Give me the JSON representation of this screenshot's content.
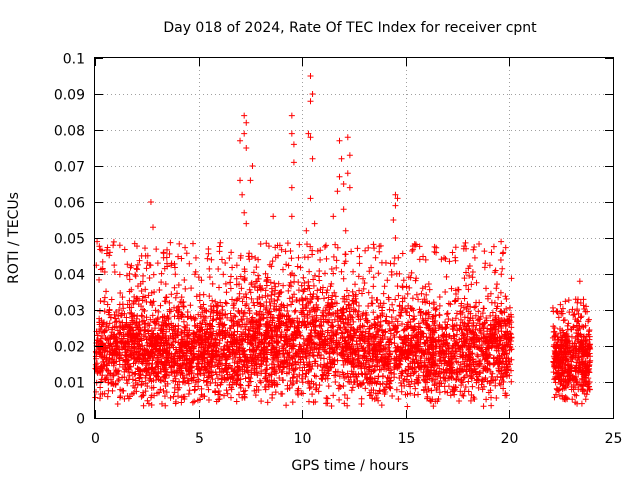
{
  "chart_data": {
    "type": "scatter",
    "title": "Day 018 of 2024, Rate Of TEC Index for receiver cpnt",
    "xlabel": "GPS time / hours",
    "ylabel": "ROTI / TECUs",
    "xlim": [
      0,
      25
    ],
    "ylim": [
      0,
      0.1
    ],
    "xticks": [
      0,
      5,
      10,
      15,
      20,
      25
    ],
    "xtick_labels": [
      "0",
      "5",
      "10",
      "15",
      "20",
      "25"
    ],
    "yticks": [
      0,
      0.01,
      0.02,
      0.03,
      0.04,
      0.05,
      0.06,
      0.07,
      0.08,
      0.09,
      0.1
    ],
    "ytick_labels": [
      "0",
      "0.01",
      "0.02",
      "0.03",
      "0.04",
      "0.05",
      "0.06",
      "0.07",
      "0.08",
      "0.09",
      "0.1"
    ],
    "grid": true,
    "marker": "+",
    "color": "#ff0000",
    "gap_hours": [
      20.1,
      22.1
    ],
    "series": [
      {
        "name": "ROTI",
        "outliers": [
          {
            "x": 10.4,
            "y": 0.095
          },
          {
            "x": 10.5,
            "y": 0.09
          },
          {
            "x": 10.4,
            "y": 0.088
          },
          {
            "x": 9.5,
            "y": 0.084
          },
          {
            "x": 7.2,
            "y": 0.084
          },
          {
            "x": 7.3,
            "y": 0.082
          },
          {
            "x": 7.2,
            "y": 0.079
          },
          {
            "x": 10.3,
            "y": 0.079
          },
          {
            "x": 9.5,
            "y": 0.079
          },
          {
            "x": 10.4,
            "y": 0.078
          },
          {
            "x": 12.2,
            "y": 0.078
          },
          {
            "x": 7.0,
            "y": 0.077
          },
          {
            "x": 11.8,
            "y": 0.077
          },
          {
            "x": 9.6,
            "y": 0.076
          },
          {
            "x": 7.3,
            "y": 0.075
          },
          {
            "x": 12.3,
            "y": 0.073
          },
          {
            "x": 10.5,
            "y": 0.072
          },
          {
            "x": 11.9,
            "y": 0.072
          },
          {
            "x": 9.6,
            "y": 0.071
          },
          {
            "x": 7.6,
            "y": 0.07
          },
          {
            "x": 12.2,
            "y": 0.068
          },
          {
            "x": 11.8,
            "y": 0.067
          },
          {
            "x": 7.0,
            "y": 0.066
          },
          {
            "x": 7.5,
            "y": 0.066
          },
          {
            "x": 12.0,
            "y": 0.065
          },
          {
            "x": 9.5,
            "y": 0.064
          },
          {
            "x": 12.3,
            "y": 0.064
          },
          {
            "x": 11.7,
            "y": 0.063
          },
          {
            "x": 7.1,
            "y": 0.062
          },
          {
            "x": 14.5,
            "y": 0.062
          },
          {
            "x": 14.6,
            "y": 0.061
          },
          {
            "x": 10.4,
            "y": 0.061
          },
          {
            "x": 2.7,
            "y": 0.06
          },
          {
            "x": 14.5,
            "y": 0.059
          },
          {
            "x": 12.0,
            "y": 0.058
          },
          {
            "x": 7.2,
            "y": 0.057
          },
          {
            "x": 8.6,
            "y": 0.056
          },
          {
            "x": 11.5,
            "y": 0.056
          },
          {
            "x": 9.5,
            "y": 0.056
          },
          {
            "x": 14.4,
            "y": 0.055
          },
          {
            "x": 7.3,
            "y": 0.054
          },
          {
            "x": 10.6,
            "y": 0.054
          },
          {
            "x": 2.8,
            "y": 0.053
          },
          {
            "x": 10.2,
            "y": 0.052
          },
          {
            "x": 12.1,
            "y": 0.052
          },
          {
            "x": 14.5,
            "y": 0.05
          },
          {
            "x": 0.1,
            "y": 0.049
          },
          {
            "x": 19.6,
            "y": 0.049
          },
          {
            "x": 1.2,
            "y": 0.048
          },
          {
            "x": 17.8,
            "y": 0.047
          },
          {
            "x": 19.7,
            "y": 0.046
          },
          {
            "x": 3.3,
            "y": 0.046
          },
          {
            "x": 23.4,
            "y": 0.038
          },
          {
            "x": 23.2,
            "y": 0.033
          },
          {
            "x": 23.7,
            "y": 0.031
          },
          {
            "x": 22.5,
            "y": 0.029
          },
          {
            "x": 2.6,
            "y": 0.004
          },
          {
            "x": 5.5,
            "y": 0.005
          },
          {
            "x": 23.5,
            "y": 0.004
          }
        ]
      }
    ]
  }
}
